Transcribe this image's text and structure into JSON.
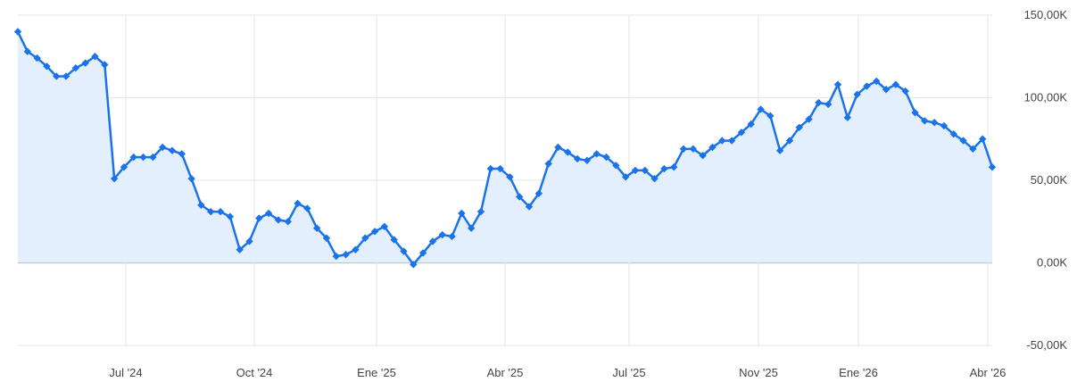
{
  "chart_data": {
    "type": "area",
    "title": "",
    "xlabel": "",
    "ylabel": "",
    "ylim": [
      -50000,
      150000
    ],
    "y_ticks": [
      150000,
      100000,
      50000,
      0,
      -50000
    ],
    "y_tick_labels": [
      "150,00K",
      "100,00K",
      "50,00K",
      "0,00K",
      "-50,00K"
    ],
    "x_tick_labels": [
      "Jul '24",
      "Oct '24",
      "Ene '25",
      "Abr '25",
      "Jul '25",
      "Nov '25",
      "Ene '26",
      "Abr '26"
    ],
    "grid": true,
    "legend": "none",
    "colors": {
      "line": "#1a73e8",
      "fill": "#e3effc",
      "grid": "#e6e6e6",
      "zero_line": "#9e9e9e",
      "text": "#444444"
    },
    "series": [
      {
        "values": [
          140000,
          128000,
          124000,
          119000,
          113000,
          113000,
          118000,
          121000,
          125000,
          120000,
          51000,
          58000,
          64000,
          64000,
          64000,
          70000,
          68000,
          66000,
          51000,
          35000,
          31000,
          31000,
          28000,
          8000,
          13000,
          27000,
          30000,
          26000,
          25000,
          36000,
          33000,
          21000,
          15000,
          4000,
          5000,
          8000,
          15000,
          19000,
          22000,
          14000,
          7000,
          -1000,
          6000,
          13000,
          17000,
          16000,
          30000,
          21000,
          31000,
          57000,
          57000,
          52000,
          40000,
          34000,
          42000,
          60000,
          70000,
          67000,
          63000,
          62000,
          66000,
          64000,
          59000,
          52000,
          56000,
          56000,
          51000,
          57000,
          58000,
          69000,
          69000,
          65000,
          70000,
          74000,
          74000,
          79000,
          84000,
          93000,
          89000,
          68000,
          74000,
          82000,
          87000,
          97000,
          96000,
          108000,
          88000,
          102000,
          107000,
          110000,
          105000,
          108000,
          104000,
          91000,
          86000,
          85000,
          83000,
          78000,
          74000,
          69000,
          75000,
          58000
        ]
      }
    ]
  }
}
